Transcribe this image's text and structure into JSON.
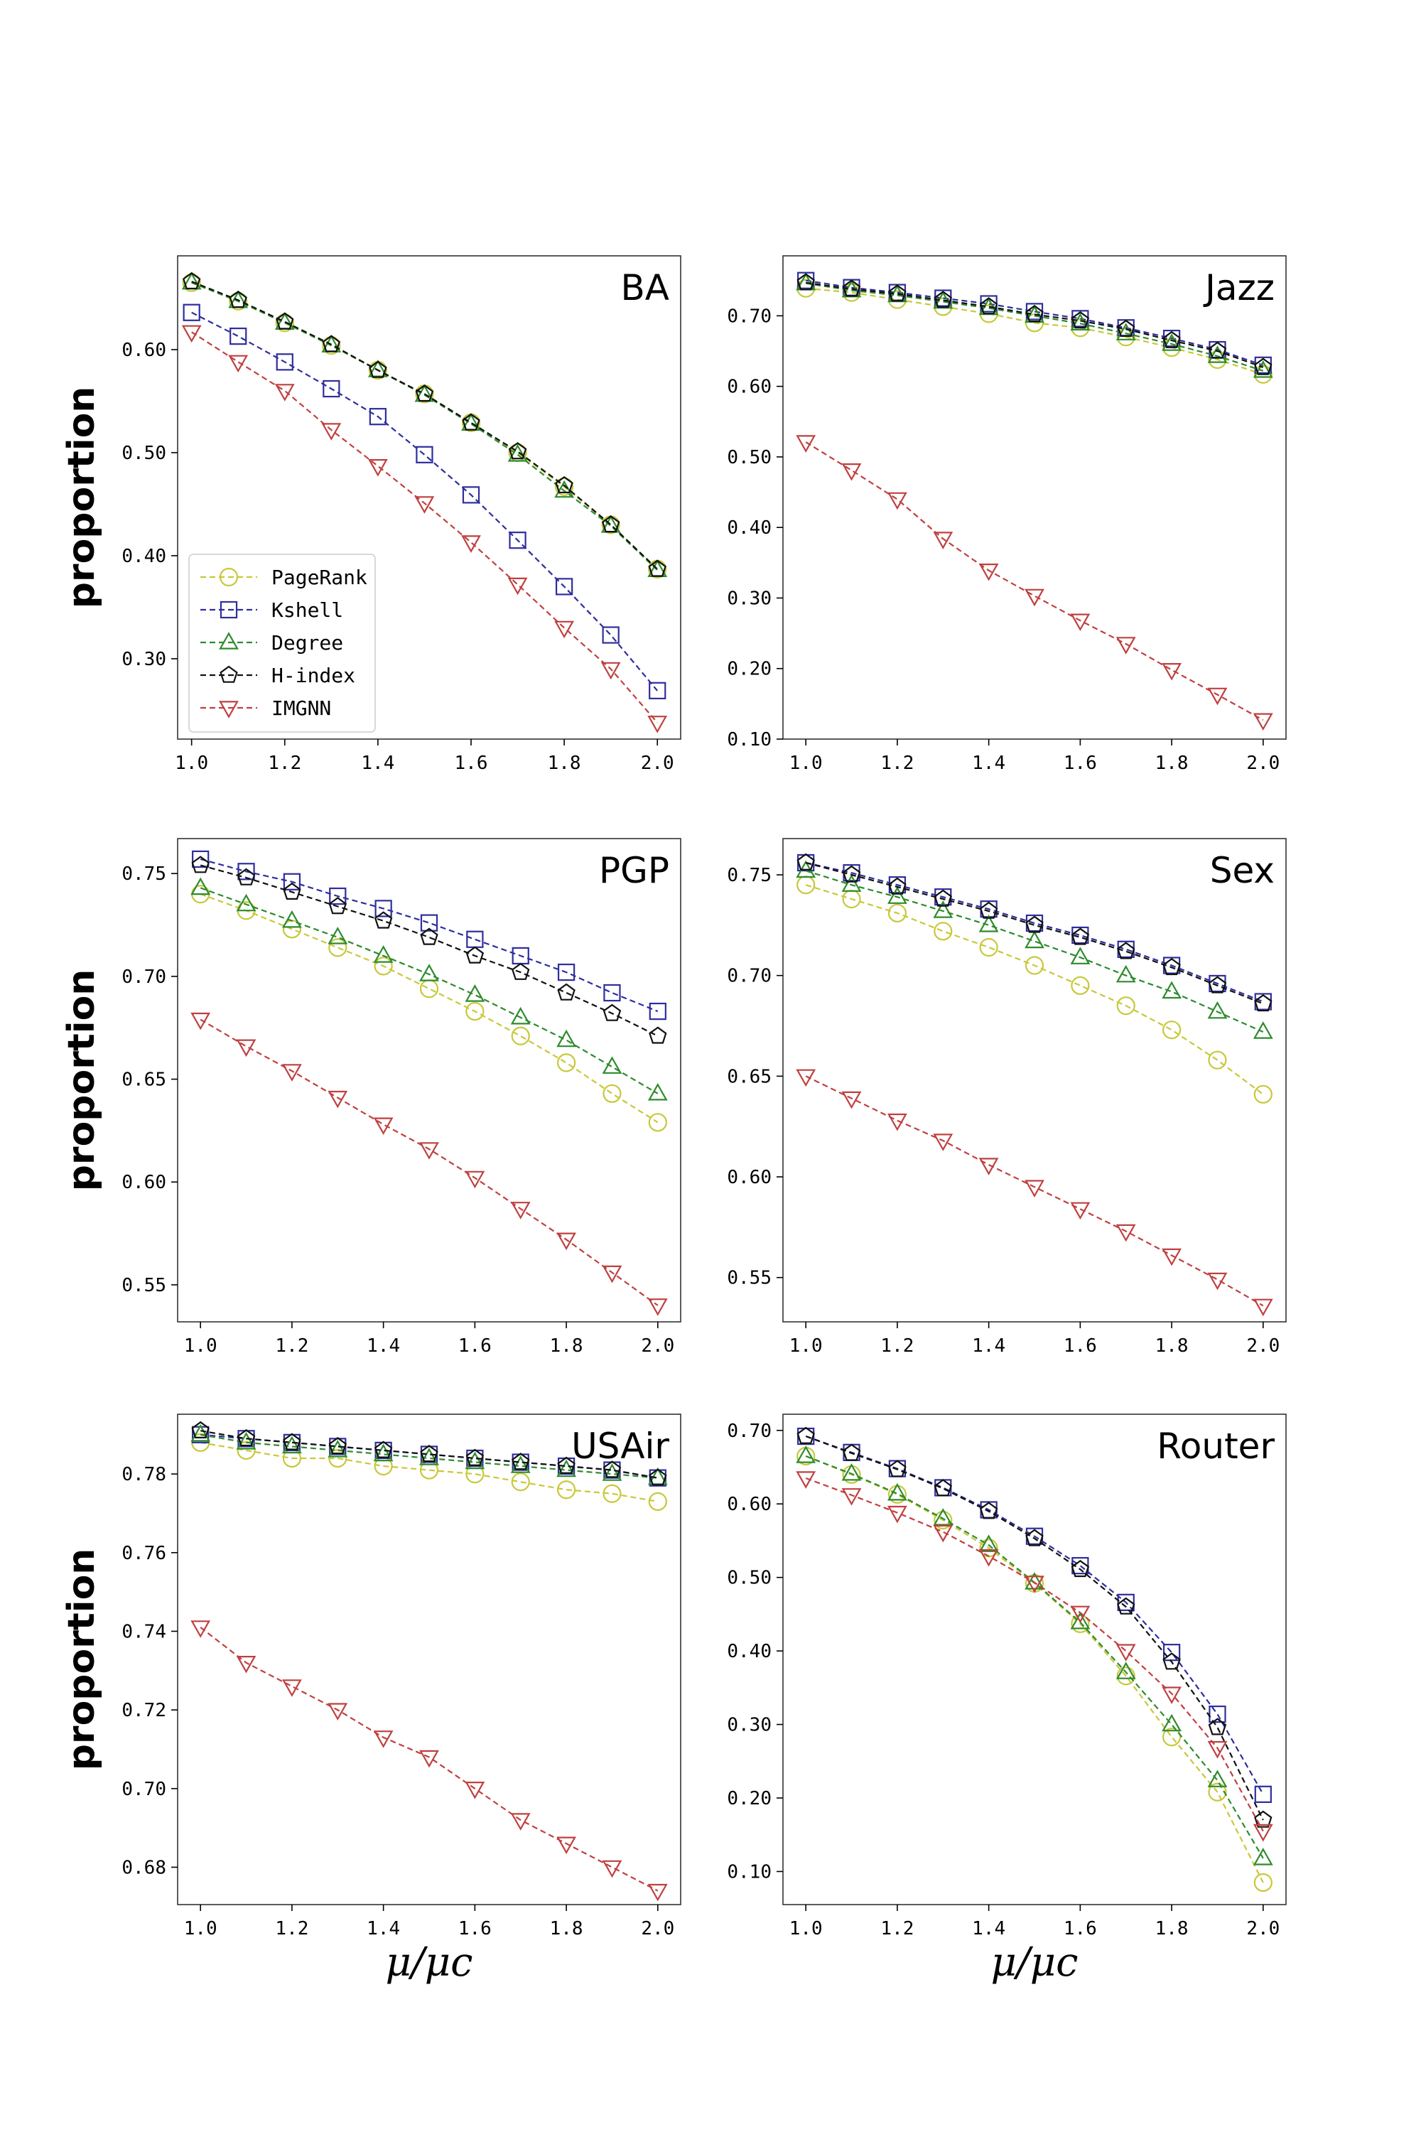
{
  "figure": {
    "series_styles": [
      {
        "name": "PageRank",
        "color": "#c8c83a",
        "marker": "circle"
      },
      {
        "name": "Kshell",
        "color": "#2e2e9e",
        "marker": "square"
      },
      {
        "name": "Degree",
        "color": "#2e8b2e",
        "marker": "triangle-up"
      },
      {
        "name": "H-index",
        "color": "#111111",
        "marker": "pentagon"
      },
      {
        "name": "IMGNN",
        "color": "#c04040",
        "marker": "triangle-down"
      }
    ]
  },
  "chart_data": [
    {
      "type": "line",
      "title": "BA",
      "xlabel": "",
      "ylabel": "proportion",
      "x": [
        1.0,
        1.1,
        1.2,
        1.3,
        1.4,
        1.5,
        1.6,
        1.7,
        1.8,
        1.9,
        2.0
      ],
      "xlim": [
        0.97,
        2.05
      ],
      "ylim": [
        0.222,
        0.691
      ],
      "xticks": [
        1.0,
        1.2,
        1.4,
        1.6,
        1.8,
        2.0
      ],
      "xtick_labels": [
        "1.0",
        "1.2",
        "1.4",
        "1.6",
        "1.8",
        "2.0"
      ],
      "yticks": [
        0.3,
        0.4,
        0.5,
        0.6
      ],
      "ytick_labels": [
        "0.30",
        "0.40",
        "0.50",
        "0.60"
      ],
      "legend": "lower-left",
      "series": [
        {
          "name": "PageRank",
          "values": [
            0.665,
            0.647,
            0.626,
            0.604,
            0.58,
            0.557,
            0.529,
            0.5,
            0.467,
            0.43,
            0.387
          ]
        },
        {
          "name": "Kshell",
          "values": [
            0.636,
            0.613,
            0.588,
            0.562,
            0.535,
            0.498,
            0.459,
            0.415,
            0.37,
            0.323,
            0.269
          ]
        },
        {
          "name": "Degree",
          "values": [
            0.665,
            0.647,
            0.626,
            0.604,
            0.58,
            0.556,
            0.528,
            0.498,
            0.463,
            0.429,
            0.386
          ]
        },
        {
          "name": "H-index",
          "values": [
            0.666,
            0.648,
            0.627,
            0.605,
            0.58,
            0.557,
            0.529,
            0.501,
            0.468,
            0.43,
            0.387
          ]
        },
        {
          "name": "IMGNN",
          "values": [
            0.617,
            0.588,
            0.56,
            0.522,
            0.487,
            0.451,
            0.413,
            0.372,
            0.33,
            0.29,
            0.238
          ]
        }
      ]
    },
    {
      "type": "line",
      "title": "Jazz",
      "xlabel": "",
      "ylabel": "",
      "x": [
        1.0,
        1.1,
        1.2,
        1.3,
        1.4,
        1.5,
        1.6,
        1.7,
        1.8,
        1.9,
        2.0
      ],
      "xlim": [
        0.95,
        2.05
      ],
      "ylim": [
        0.1,
        0.785
      ],
      "xticks": [
        1.0,
        1.2,
        1.4,
        1.6,
        1.8,
        2.0
      ],
      "xtick_labels": [
        "1.0",
        "1.2",
        "1.4",
        "1.6",
        "1.8",
        "2.0"
      ],
      "yticks": [
        0.1,
        0.2,
        0.3,
        0.4,
        0.5,
        0.6,
        0.7
      ],
      "ytick_labels": [
        "0.10",
        "0.20",
        "0.30",
        "0.40",
        "0.50",
        "0.60",
        "0.70"
      ],
      "series": [
        {
          "name": "PageRank",
          "values": [
            0.739,
            0.733,
            0.723,
            0.713,
            0.703,
            0.69,
            0.683,
            0.67,
            0.655,
            0.638,
            0.617
          ]
        },
        {
          "name": "Kshell",
          "values": [
            0.75,
            0.74,
            0.733,
            0.725,
            0.717,
            0.706,
            0.696,
            0.683,
            0.668,
            0.652,
            0.63
          ]
        },
        {
          "name": "Degree",
          "values": [
            0.746,
            0.736,
            0.729,
            0.72,
            0.711,
            0.7,
            0.689,
            0.675,
            0.66,
            0.643,
            0.622
          ]
        },
        {
          "name": "H-index",
          "values": [
            0.747,
            0.738,
            0.731,
            0.722,
            0.713,
            0.702,
            0.693,
            0.681,
            0.665,
            0.65,
            0.627
          ]
        },
        {
          "name": "IMGNN",
          "values": [
            0.521,
            0.481,
            0.44,
            0.384,
            0.339,
            0.303,
            0.268,
            0.235,
            0.198,
            0.163,
            0.127
          ]
        }
      ]
    },
    {
      "type": "line",
      "title": "PGP",
      "xlabel": "",
      "ylabel": "proportion",
      "x": [
        1.0,
        1.1,
        1.2,
        1.3,
        1.4,
        1.5,
        1.6,
        1.7,
        1.8,
        1.9,
        2.0
      ],
      "xlim": [
        0.95,
        2.05
      ],
      "ylim": [
        0.532,
        0.767
      ],
      "xticks": [
        1.0,
        1.2,
        1.4,
        1.6,
        1.8,
        2.0
      ],
      "xtick_labels": [
        "1.0",
        "1.2",
        "1.4",
        "1.6",
        "1.8",
        "2.0"
      ],
      "yticks": [
        0.55,
        0.6,
        0.65,
        0.7,
        0.75
      ],
      "ytick_labels": [
        "0.55",
        "0.60",
        "0.65",
        "0.70",
        "0.75"
      ],
      "series": [
        {
          "name": "PageRank",
          "values": [
            0.74,
            0.732,
            0.723,
            0.714,
            0.705,
            0.694,
            0.683,
            0.671,
            0.658,
            0.643,
            0.629
          ]
        },
        {
          "name": "Kshell",
          "values": [
            0.757,
            0.751,
            0.746,
            0.739,
            0.733,
            0.726,
            0.718,
            0.71,
            0.702,
            0.692,
            0.683
          ]
        },
        {
          "name": "Degree",
          "values": [
            0.743,
            0.735,
            0.727,
            0.719,
            0.71,
            0.701,
            0.691,
            0.68,
            0.669,
            0.656,
            0.643
          ]
        },
        {
          "name": "H-index",
          "values": [
            0.754,
            0.748,
            0.741,
            0.734,
            0.727,
            0.719,
            0.71,
            0.702,
            0.692,
            0.682,
            0.671
          ]
        },
        {
          "name": "IMGNN",
          "values": [
            0.679,
            0.666,
            0.654,
            0.641,
            0.628,
            0.616,
            0.602,
            0.587,
            0.572,
            0.556,
            0.54
          ]
        }
      ]
    },
    {
      "type": "line",
      "title": "Sex",
      "xlabel": "",
      "ylabel": "",
      "x": [
        1.0,
        1.1,
        1.2,
        1.3,
        1.4,
        1.5,
        1.6,
        1.7,
        1.8,
        1.9,
        2.0
      ],
      "xlim": [
        0.95,
        2.05
      ],
      "ylim": [
        0.528,
        0.768
      ],
      "xticks": [
        1.0,
        1.2,
        1.4,
        1.6,
        1.8,
        2.0
      ],
      "xtick_labels": [
        "1.0",
        "1.2",
        "1.4",
        "1.6",
        "1.8",
        "2.0"
      ],
      "yticks": [
        0.55,
        0.6,
        0.65,
        0.7,
        0.75
      ],
      "ytick_labels": [
        "0.55",
        "0.60",
        "0.65",
        "0.70",
        "0.75"
      ],
      "series": [
        {
          "name": "PageRank",
          "values": [
            0.745,
            0.738,
            0.731,
            0.722,
            0.714,
            0.705,
            0.695,
            0.685,
            0.673,
            0.658,
            0.641
          ]
        },
        {
          "name": "Kshell",
          "values": [
            0.756,
            0.751,
            0.745,
            0.739,
            0.733,
            0.726,
            0.72,
            0.713,
            0.705,
            0.696,
            0.687
          ]
        },
        {
          "name": "Degree",
          "values": [
            0.752,
            0.745,
            0.739,
            0.732,
            0.725,
            0.717,
            0.709,
            0.7,
            0.692,
            0.682,
            0.672
          ]
        },
        {
          "name": "H-index",
          "values": [
            0.756,
            0.75,
            0.744,
            0.738,
            0.732,
            0.725,
            0.719,
            0.712,
            0.704,
            0.695,
            0.686
          ]
        },
        {
          "name": "IMGNN",
          "values": [
            0.65,
            0.639,
            0.628,
            0.618,
            0.606,
            0.595,
            0.584,
            0.573,
            0.561,
            0.549,
            0.536
          ]
        }
      ]
    },
    {
      "type": "line",
      "title": "USAir",
      "xlabel": "μ/μc",
      "ylabel": "proportion",
      "x": [
        1.0,
        1.1,
        1.2,
        1.3,
        1.4,
        1.5,
        1.6,
        1.7,
        1.8,
        1.9,
        2.0
      ],
      "xlim": [
        0.95,
        2.05
      ],
      "ylim": [
        0.6705,
        0.7952
      ],
      "xticks": [
        1.0,
        1.2,
        1.4,
        1.6,
        1.8,
        2.0
      ],
      "xtick_labels": [
        "1.0",
        "1.2",
        "1.4",
        "1.6",
        "1.8",
        "2.0"
      ],
      "yticks": [
        0.68,
        0.7,
        0.72,
        0.74,
        0.76,
        0.78
      ],
      "ytick_labels": [
        "0.68",
        "0.70",
        "0.72",
        "0.74",
        "0.76",
        "0.78"
      ],
      "series": [
        {
          "name": "PageRank",
          "values": [
            0.788,
            0.786,
            0.784,
            0.784,
            0.782,
            0.781,
            0.78,
            0.778,
            0.776,
            0.775,
            0.773
          ]
        },
        {
          "name": "Kshell",
          "values": [
            0.79,
            0.789,
            0.788,
            0.787,
            0.786,
            0.785,
            0.784,
            0.783,
            0.782,
            0.781,
            0.779
          ]
        },
        {
          "name": "Degree",
          "values": [
            0.79,
            0.788,
            0.787,
            0.786,
            0.785,
            0.784,
            0.783,
            0.782,
            0.781,
            0.78,
            0.779
          ]
        },
        {
          "name": "H-index",
          "values": [
            0.791,
            0.789,
            0.788,
            0.787,
            0.786,
            0.785,
            0.784,
            0.783,
            0.782,
            0.781,
            0.779
          ]
        },
        {
          "name": "IMGNN",
          "values": [
            0.741,
            0.732,
            0.726,
            0.72,
            0.713,
            0.708,
            0.7,
            0.692,
            0.686,
            0.68,
            0.674
          ]
        }
      ]
    },
    {
      "type": "line",
      "title": "Router",
      "xlabel": "μ/μc",
      "ylabel": "",
      "x": [
        1.0,
        1.1,
        1.2,
        1.3,
        1.4,
        1.5,
        1.6,
        1.7,
        1.8,
        1.9,
        2.0
      ],
      "xlim": [
        0.95,
        2.05
      ],
      "ylim": [
        0.055,
        0.722
      ],
      "xticks": [
        1.0,
        1.2,
        1.4,
        1.6,
        1.8,
        2.0
      ],
      "xtick_labels": [
        "1.0",
        "1.2",
        "1.4",
        "1.6",
        "1.8",
        "2.0"
      ],
      "yticks": [
        0.1,
        0.2,
        0.3,
        0.4,
        0.5,
        0.6,
        0.7
      ],
      "ytick_labels": [
        "0.10",
        "0.20",
        "0.30",
        "0.40",
        "0.50",
        "0.60",
        "0.70"
      ],
      "series": [
        {
          "name": "PageRank",
          "values": [
            0.665,
            0.64,
            0.613,
            0.578,
            0.54,
            0.492,
            0.437,
            0.366,
            0.283,
            0.208,
            0.085
          ]
        },
        {
          "name": "Kshell",
          "values": [
            0.692,
            0.67,
            0.648,
            0.622,
            0.592,
            0.556,
            0.516,
            0.466,
            0.398,
            0.314,
            0.205
          ]
        },
        {
          "name": "Degree",
          "values": [
            0.665,
            0.641,
            0.614,
            0.58,
            0.544,
            0.493,
            0.439,
            0.371,
            0.3,
            0.224,
            0.118
          ]
        },
        {
          "name": "H-index",
          "values": [
            0.692,
            0.669,
            0.647,
            0.621,
            0.59,
            0.553,
            0.511,
            0.46,
            0.385,
            0.296,
            0.17
          ]
        },
        {
          "name": "IMGNN",
          "values": [
            0.635,
            0.612,
            0.588,
            0.562,
            0.529,
            0.493,
            0.452,
            0.4,
            0.342,
            0.268,
            0.155
          ]
        }
      ]
    }
  ]
}
